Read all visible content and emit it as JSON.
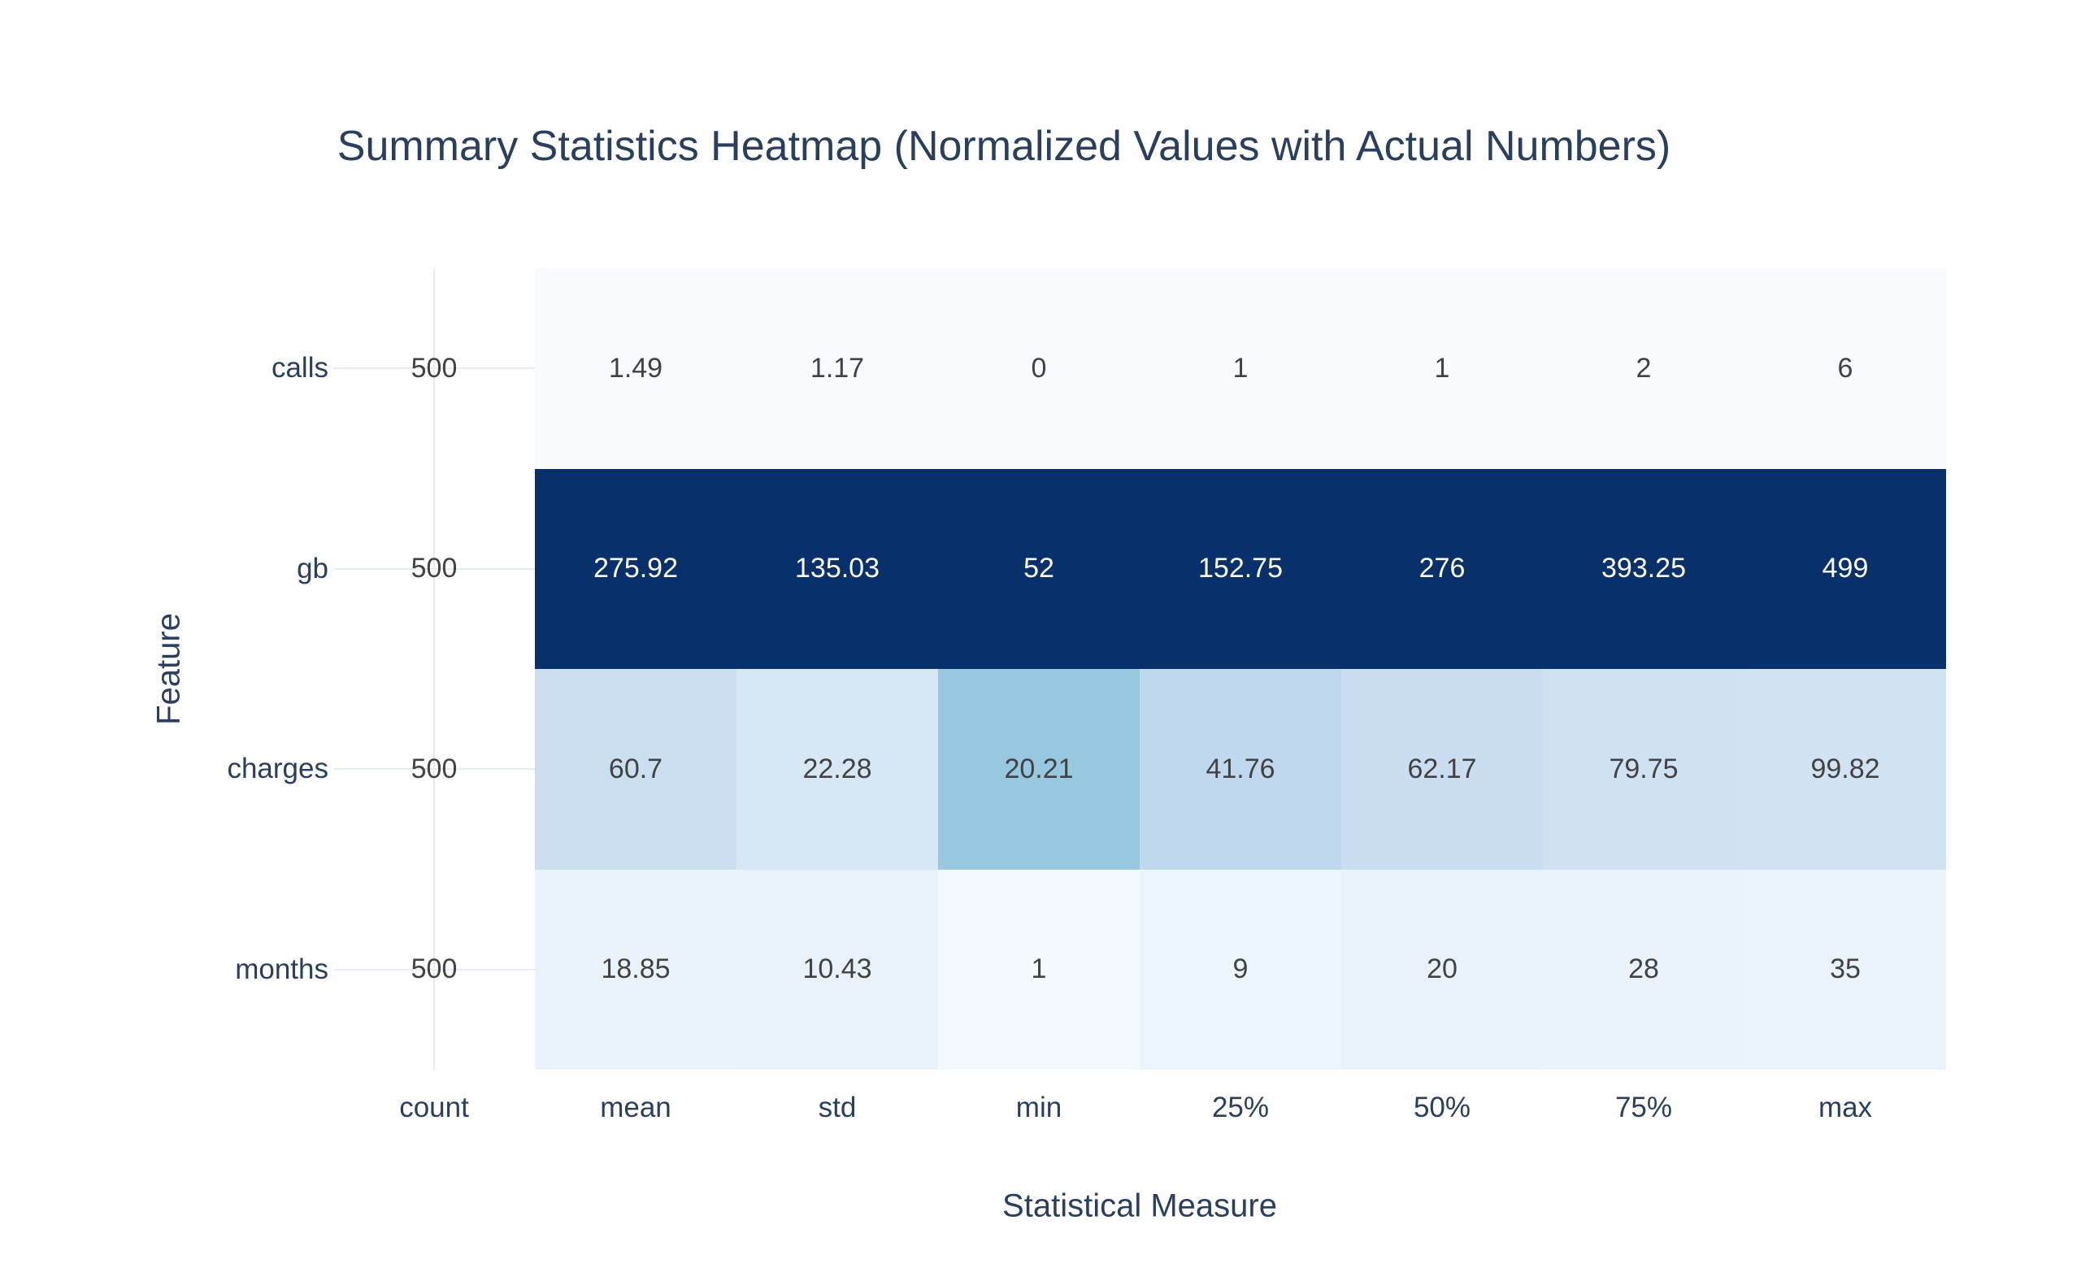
{
  "chart_data": {
    "type": "heatmap",
    "title": "Summary Statistics Heatmap (Normalized Values with Actual Numbers)",
    "xlabel": "Statistical Measure",
    "ylabel": "Feature",
    "columns": [
      "count",
      "mean",
      "std",
      "min",
      "25%",
      "50%",
      "75%",
      "max"
    ],
    "rows": [
      {
        "label": "calls",
        "values": [
          "500",
          "1.49",
          "1.17",
          "0",
          "1",
          "1",
          "2",
          "6"
        ],
        "norm": [
          null,
          0,
          0,
          0,
          0,
          0,
          0,
          0
        ],
        "cell_colors": [
          null,
          "#f7fbff",
          "#f7fbff",
          "#f7fbff",
          "#f7fbff",
          "#f7fbff",
          "#f7fbff",
          "#f7fbff"
        ]
      },
      {
        "label": "gb",
        "values": [
          "500",
          "275.92",
          "135.03",
          "52",
          "152.75",
          "276",
          "393.25",
          "499"
        ],
        "norm": [
          null,
          1,
          1,
          1,
          1,
          1,
          1,
          1
        ],
        "cell_colors": [
          null,
          "#08306b",
          "#08306b",
          "#08306b",
          "#08306b",
          "#08306b",
          "#08306b",
          "#08306b"
        ]
      },
      {
        "label": "charges",
        "values": [
          "500",
          "60.7",
          "22.28",
          "20.21",
          "41.76",
          "62.17",
          "79.75",
          "99.82"
        ],
        "norm": [
          null,
          0.2158,
          0.1577,
          0.3887,
          0.2686,
          0.2224,
          0.1987,
          0.1903
        ],
        "cell_colors": [
          null,
          "#ccdff1",
          "#d8e7f5",
          "#98c7e0",
          "#c0d8ed",
          "#cbdef1",
          "#d0e2f2",
          "#d1e3f3"
        ]
      },
      {
        "label": "months",
        "values": [
          "500",
          "18.85",
          "10.43",
          "1",
          "9",
          "20",
          "28",
          "35"
        ],
        "norm": [
          null,
          0.0633,
          0.0692,
          0.0192,
          0.0527,
          0.0691,
          0.0664,
          0.0588
        ],
        "cell_colors": [
          null,
          "#eaf3fb",
          "#e9f2fb",
          "#f3f9fe",
          "#ecf4fc",
          "#e9f2fb",
          "#eaf2fb",
          "#ebf3fb"
        ]
      }
    ],
    "colorscale": {
      "name": "Blues",
      "stops": [
        [
          0.0,
          "#f7fbff"
        ],
        [
          0.125,
          "#deebf7"
        ],
        [
          0.25,
          "#c6dbef"
        ],
        [
          0.375,
          "#9ecae1"
        ],
        [
          0.5,
          "#6baed6"
        ],
        [
          0.625,
          "#4292c6"
        ],
        [
          0.75,
          "#2171b5"
        ],
        [
          0.875,
          "#08519c"
        ],
        [
          1.0,
          "#08306b"
        ]
      ],
      "colorbar_visible": false
    },
    "layout_hints": {
      "grid": true,
      "legend_position": "none",
      "count_column_transparent": true
    }
  },
  "colors": {
    "background": "#ffffff",
    "axis_text": "#2a3f5f",
    "title_text": "#2a3f5f",
    "annotation_dark": "#424242",
    "annotation_light": "#ffffff",
    "gridline": "#e5ecf6"
  }
}
